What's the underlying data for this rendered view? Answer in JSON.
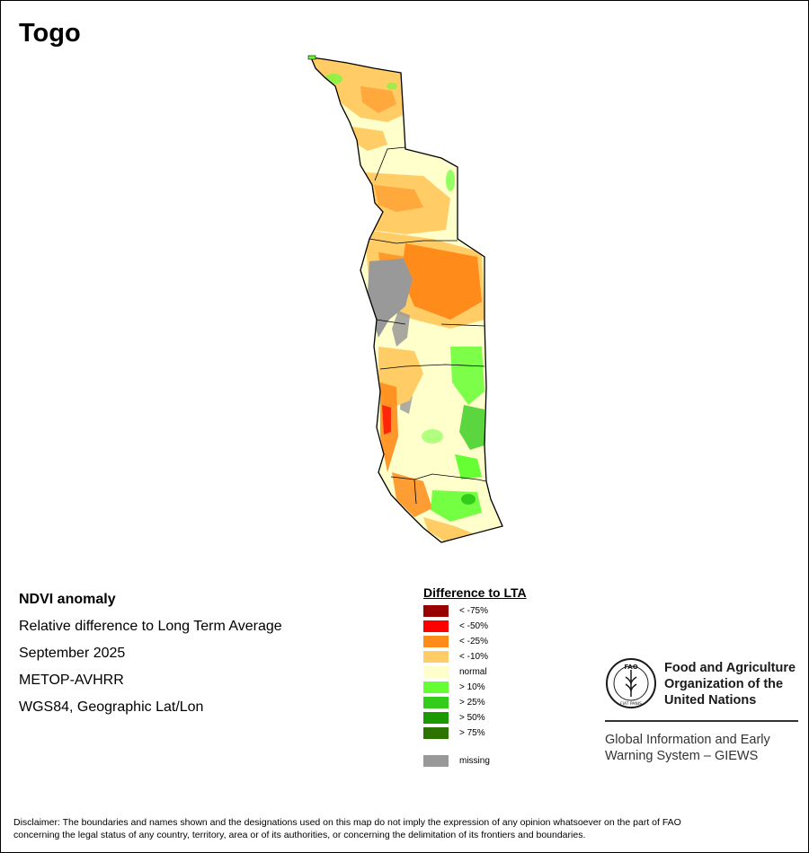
{
  "title": "Togo",
  "info": {
    "heading": "NDVI anomaly",
    "subtitle": "Relative difference to Long Term Average",
    "date": "September 2025",
    "sensor": "METOP-AVHRR",
    "projection": "WGS84, Geographic Lat/Lon"
  },
  "legend": {
    "title": "Difference to LTA",
    "items": [
      {
        "label": "< -75%",
        "color": "#990000"
      },
      {
        "label": "< -50%",
        "color": "#ff0000"
      },
      {
        "label": "< -25%",
        "color": "#ff8c1a"
      },
      {
        "label": "< -10%",
        "color": "#ffcc66"
      },
      {
        "label": "normal",
        "color": "#ffffcc"
      },
      {
        "label": "> 10%",
        "color": "#66ff33"
      },
      {
        "label": "> 25%",
        "color": "#33cc1a"
      },
      {
        "label": "> 50%",
        "color": "#1a9900"
      },
      {
        "label": "> 75%",
        "color": "#2d7300"
      }
    ],
    "missing": {
      "label": "missing",
      "color": "#999999"
    }
  },
  "fao": {
    "logo_text": "FAO",
    "motto": "FIAT PANIS",
    "name_line1": "Food and Agriculture",
    "name_line2": "Organization of the",
    "name_line3": "United Nations",
    "giews_line1": "Global Information and Early",
    "giews_line2": "Warning System – GIEWS"
  },
  "disclaimer": {
    "line1": "Disclaimer: The boundaries and names shown and the designations used on this map do not imply the expression of any opinion whatsoever on the part of FAO",
    "line2": "concerning the legal status of any country, territory, area or of its authorities, or concerning the delimitation of its frontiers and boundaries."
  }
}
